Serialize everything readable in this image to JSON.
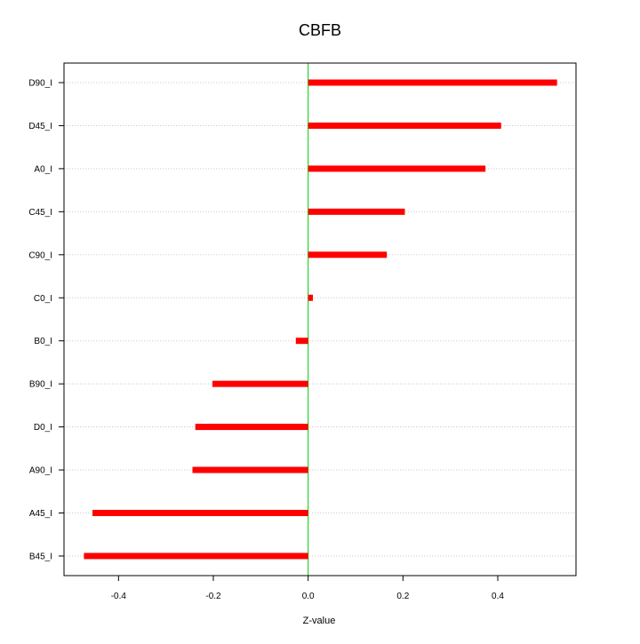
{
  "chart_data": {
    "type": "bar",
    "orientation": "horizontal",
    "title": "CBFB",
    "xlabel": "Z-value",
    "ylabel": "",
    "categories": [
      "D90_I",
      "D45_I",
      "A0_I",
      "C45_I",
      "C90_I",
      "C0_I",
      "B0_I",
      "B90_I",
      "D0_I",
      "A90_I",
      "A45_I",
      "B45_I"
    ],
    "values": [
      0.525,
      0.407,
      0.374,
      0.204,
      0.166,
      0.01,
      -0.026,
      -0.202,
      -0.238,
      -0.244,
      -0.455,
      -0.473
    ],
    "xlim": [
      -0.515,
      0.565
    ],
    "xticks": [
      -0.4,
      -0.2,
      0.0,
      0.2,
      0.4
    ],
    "xtick_labels": [
      "-0.4",
      "-0.2",
      "0.0",
      "0.2",
      "0.4"
    ],
    "reference_line": 0,
    "grid": "horizontal-dotted",
    "colors": {
      "bar": "#ff0000",
      "zero_line": "#00cc00",
      "grid": "#c8c8c8",
      "axis": "#000000"
    }
  }
}
